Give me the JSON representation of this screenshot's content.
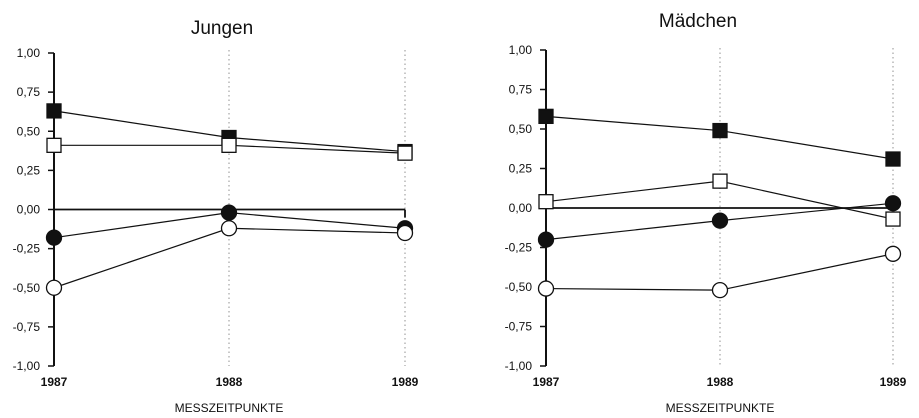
{
  "chart_data": [
    {
      "type": "line",
      "title": "Jungen",
      "xlabel": "MESSZEITPUNKTE",
      "ylabel": "",
      "categories": [
        "1987",
        "1988",
        "1989"
      ],
      "ylim": [
        -1.0,
        1.0
      ],
      "yticks": [
        "1,00",
        "0,75",
        "0,50",
        "0,25",
        "0,00",
        "-0,25",
        "-0,50",
        "-0,75",
        "-1,00"
      ],
      "series": [
        {
          "marker": "filled-square",
          "values": [
            0.63,
            0.46,
            0.37
          ]
        },
        {
          "marker": "open-square",
          "values": [
            0.41,
            0.41,
            0.36
          ]
        },
        {
          "marker": "filled-circle",
          "values": [
            -0.18,
            -0.02,
            -0.12
          ]
        },
        {
          "marker": "open-circle",
          "values": [
            -0.5,
            -0.12,
            -0.15
          ]
        }
      ]
    },
    {
      "type": "line",
      "title": "Mädchen",
      "xlabel": "MESSZEITPUNKTE",
      "ylabel": "",
      "categories": [
        "1987",
        "1988",
        "1989"
      ],
      "ylim": [
        -1.0,
        1.0
      ],
      "yticks": [
        "1,00",
        "0,75",
        "0,50",
        "0,25",
        "0,00",
        "-0,25",
        "-0,50",
        "-0,75",
        "-1,00"
      ],
      "series": [
        {
          "marker": "filled-square",
          "values": [
            0.58,
            0.49,
            0.31
          ]
        },
        {
          "marker": "open-square",
          "values": [
            0.04,
            0.17,
            -0.07
          ]
        },
        {
          "marker": "filled-circle",
          "values": [
            -0.2,
            -0.08,
            0.03
          ]
        },
        {
          "marker": "open-circle",
          "values": [
            -0.51,
            -0.52,
            -0.29
          ]
        }
      ]
    }
  ]
}
